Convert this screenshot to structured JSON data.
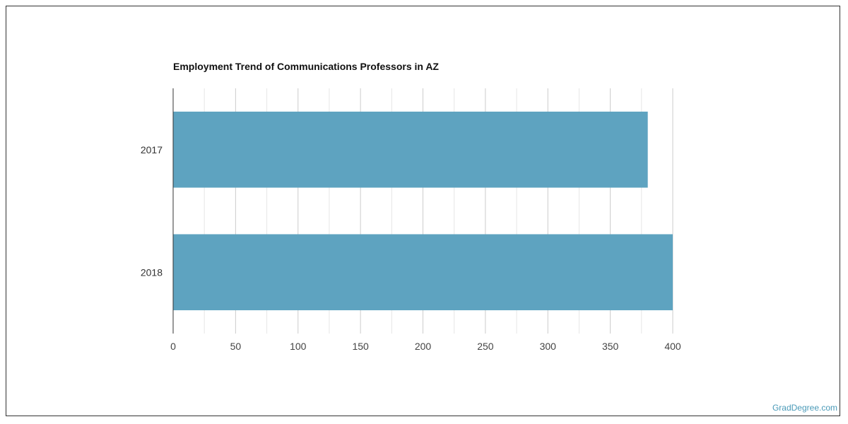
{
  "chart_data": {
    "type": "bar",
    "orientation": "horizontal",
    "title": "Employment Trend of Communications Professors in AZ",
    "categories": [
      "2017",
      "2018"
    ],
    "series": [
      {
        "values": [
          380,
          400
        ]
      }
    ],
    "xlim": [
      0,
      400
    ],
    "xticks": [
      0,
      50,
      100,
      150,
      200,
      250,
      300,
      350,
      400
    ],
    "grid": true,
    "bar_color": "#5ea3c0",
    "grid_color": "#dddddd",
    "axis_color": "#333333"
  },
  "watermark": "GradDegree.com"
}
